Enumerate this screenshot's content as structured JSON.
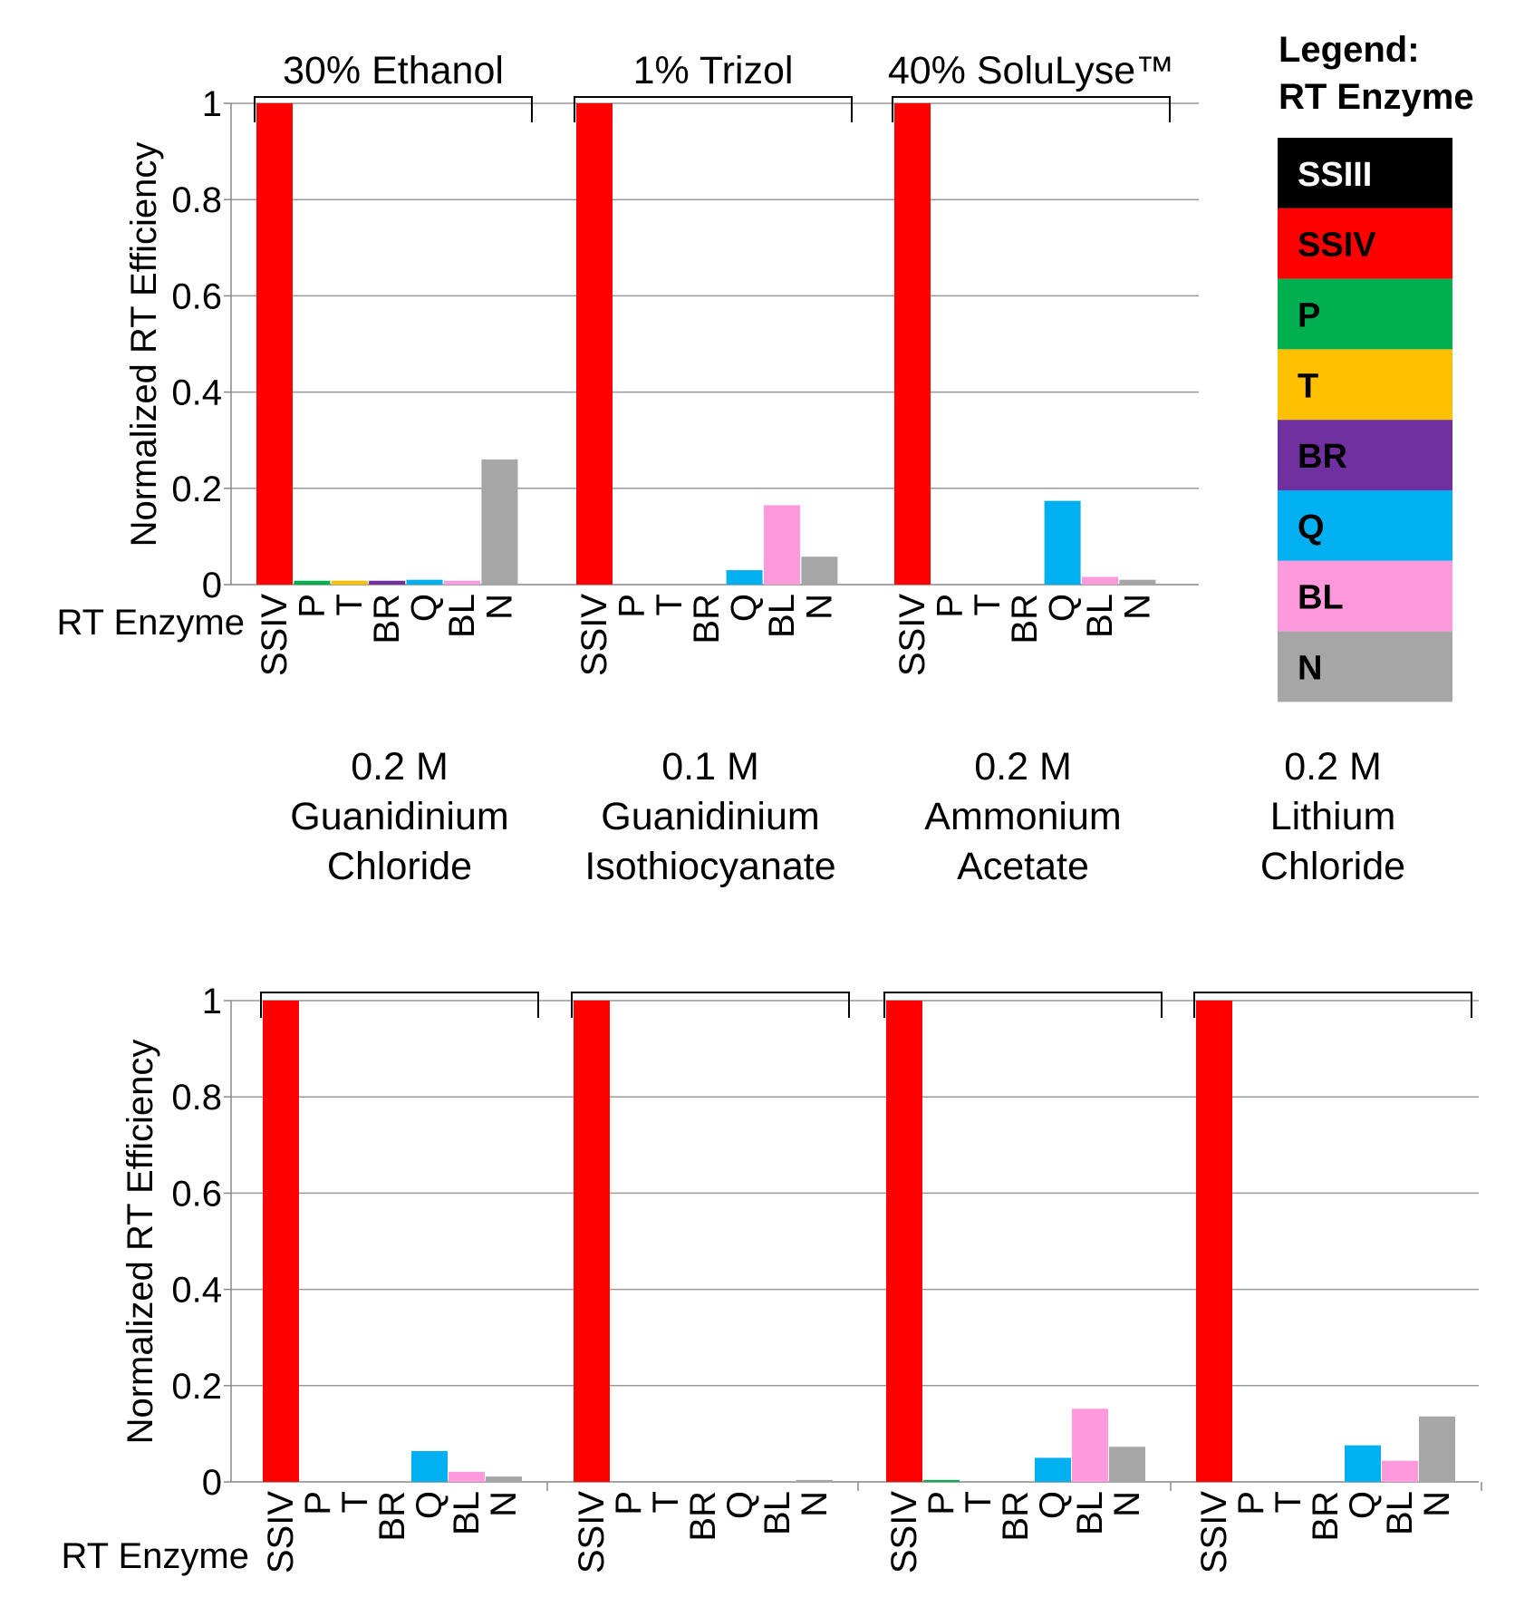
{
  "legend": {
    "title_line1": "Legend:",
    "title_line2": "RT Enzyme",
    "items": [
      {
        "label": "SSIII",
        "color": "#000000",
        "text_color": "#ffffff"
      },
      {
        "label": "SSIV",
        "color": "#ff0000",
        "text_color": "#000000"
      },
      {
        "label": "P",
        "color": "#00b050",
        "text_color": "#000000"
      },
      {
        "label": "T",
        "color": "#ffc000",
        "text_color": "#000000"
      },
      {
        "label": "BR",
        "color": "#7030a0",
        "text_color": "#000000"
      },
      {
        "label": "Q",
        "color": "#00b0f0",
        "text_color": "#000000"
      },
      {
        "label": "BL",
        "color": "#ff99dd",
        "text_color": "#000000"
      },
      {
        "label": "N",
        "color": "#a6a6a6",
        "text_color": "#000000"
      }
    ]
  },
  "chart_data": [
    {
      "type": "bar",
      "ylabel": "Normalized RT Efficiency",
      "xlabel": "RT Enzyme",
      "ylim": [
        0,
        1
      ],
      "yticks": [
        "0",
        "0.2",
        "0.4",
        "0.6",
        "0.8",
        "1"
      ],
      "grid": true,
      "categories": [
        "SSIV",
        "P",
        "T",
        "BR",
        "Q",
        "BL",
        "N"
      ],
      "groups": [
        {
          "label_lines": [
            "30% Ethanol"
          ],
          "values": [
            1.0,
            0.008,
            0.008,
            0.008,
            0.01,
            0.008,
            0.26
          ]
        },
        {
          "label_lines": [
            "1% Trizol"
          ],
          "values": [
            1.0,
            0,
            0,
            0,
            0.03,
            0.165,
            0.058
          ]
        },
        {
          "label_lines": [
            "40% SoluLyse™"
          ],
          "values": [
            1.0,
            0,
            0,
            0,
            0.174,
            0.016,
            0.01
          ]
        }
      ]
    },
    {
      "type": "bar",
      "ylabel": "Normalized RT Efficiency",
      "xlabel": "RT Enzyme",
      "ylim": [
        0,
        1
      ],
      "yticks": [
        "0",
        "0.2",
        "0.4",
        "0.6",
        "0.8",
        "1"
      ],
      "grid": true,
      "categories": [
        "SSIV",
        "P",
        "T",
        "BR",
        "Q",
        "BL",
        "N"
      ],
      "groups": [
        {
          "label_lines": [
            "0.2 M",
            "Guanidinium",
            "Chloride"
          ],
          "values": [
            1.0,
            0,
            0,
            0,
            0.064,
            0.021,
            0.011
          ]
        },
        {
          "label_lines": [
            "0.1 M",
            "Guanidinium",
            "Isothiocyanate"
          ],
          "values": [
            1.0,
            0,
            0,
            0,
            0,
            0,
            0.004
          ]
        },
        {
          "label_lines": [
            "0.2 M",
            "Ammonium",
            "Acetate"
          ],
          "values": [
            1.0,
            0.004,
            0,
            0,
            0.05,
            0.152,
            0.073
          ]
        },
        {
          "label_lines": [
            "0.2 M",
            "Lithium",
            "Chloride"
          ],
          "values": [
            1.0,
            0,
            0,
            0,
            0.076,
            0.044,
            0.136
          ]
        }
      ]
    }
  ]
}
